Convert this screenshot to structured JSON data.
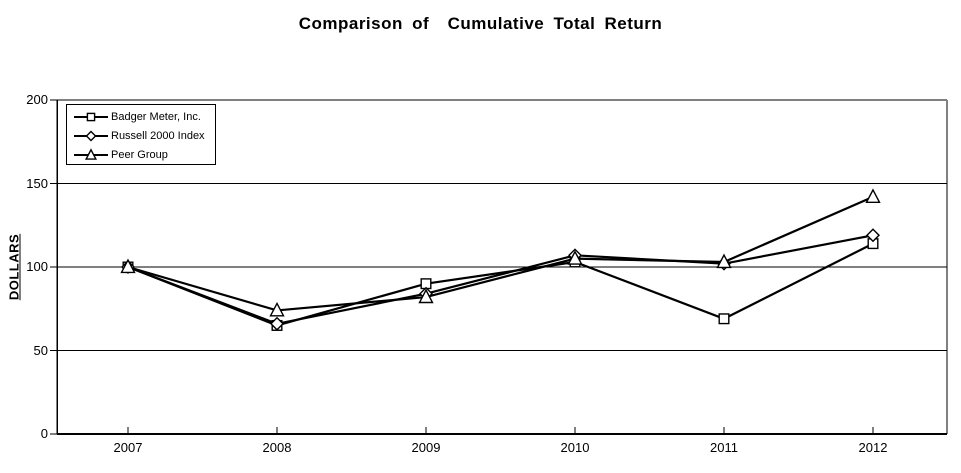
{
  "page": {
    "title": "Comparison of  Cumulative Total Return"
  },
  "chart_data": {
    "type": "line",
    "title": "Comparison of  Cumulative Total Return",
    "xlabel": "",
    "ylabel": "DOLLARS",
    "x": [
      "2007",
      "2008",
      "2009",
      "2010",
      "2011",
      "2012"
    ],
    "ylim": [
      0,
      200
    ],
    "yticks": [
      0,
      50,
      100,
      150,
      200
    ],
    "grid": "horizontal",
    "legend_position": "top-left-inside",
    "series": [
      {
        "name": "Badger Meter, Inc.",
        "marker": "square",
        "values": [
          100,
          65,
          90,
          103,
          69,
          114
        ]
      },
      {
        "name": "Russell 2000 Index",
        "marker": "diamond",
        "values": [
          100,
          66,
          84,
          107,
          102,
          119
        ]
      },
      {
        "name": "Peer Group",
        "marker": "triangle",
        "values": [
          100,
          74,
          82,
          105,
          103,
          142
        ]
      }
    ],
    "colors": {
      "line": "#000000",
      "grid": "#000000",
      "plot_border": "#808080",
      "marker_fill": "#ffffff",
      "text": "#000000",
      "background": "#ffffff"
    }
  }
}
